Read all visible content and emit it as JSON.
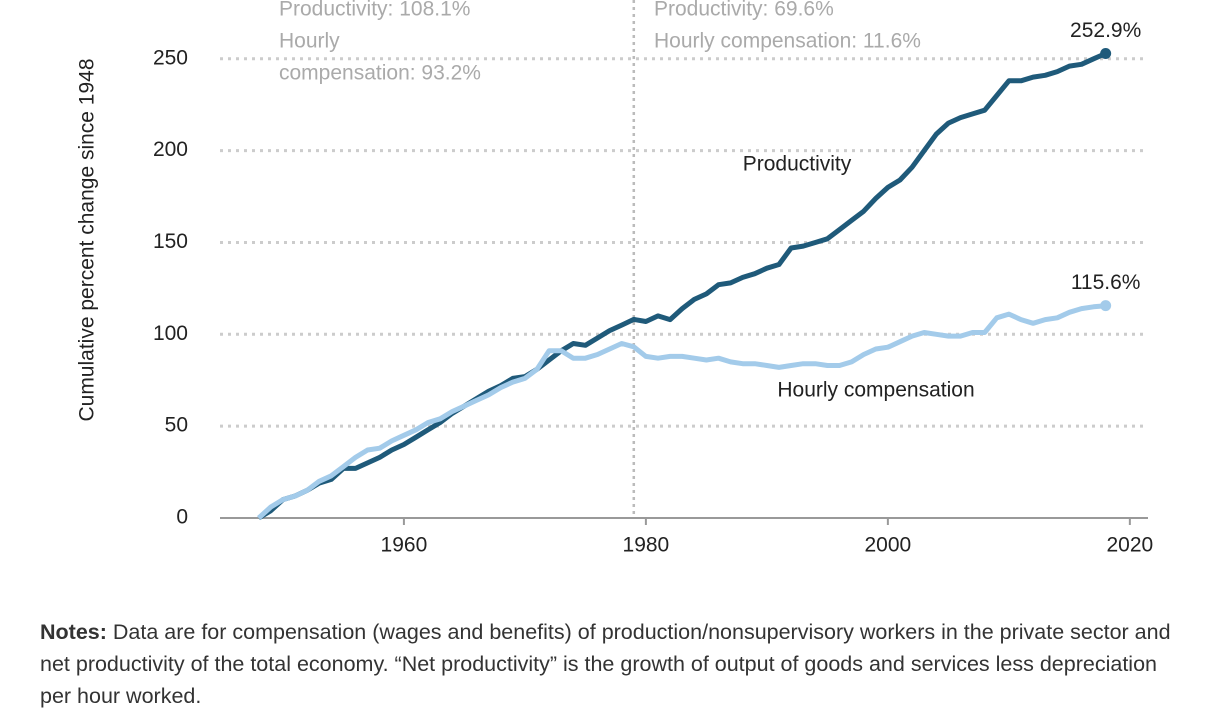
{
  "chart_data": {
    "type": "line",
    "y_label": "Cumulative percent change since 1948",
    "x": [
      1948,
      1949,
      1950,
      1951,
      1952,
      1953,
      1954,
      1955,
      1956,
      1957,
      1958,
      1959,
      1960,
      1961,
      1962,
      1963,
      1964,
      1965,
      1966,
      1967,
      1968,
      1969,
      1970,
      1971,
      1972,
      1973,
      1974,
      1975,
      1976,
      1977,
      1978,
      1979,
      1980,
      1981,
      1982,
      1983,
      1984,
      1985,
      1986,
      1987,
      1988,
      1989,
      1990,
      1991,
      1992,
      1993,
      1994,
      1995,
      1996,
      1997,
      1998,
      1999,
      2000,
      2001,
      2002,
      2003,
      2004,
      2005,
      2006,
      2007,
      2008,
      2009,
      2010,
      2011,
      2012,
      2013,
      2014,
      2015,
      2016,
      2017,
      2018
    ],
    "series": [
      {
        "name": "Productivity",
        "color": "#1f5a7a",
        "end_label": "252.9%",
        "values": [
          0,
          4,
          10,
          12,
          15,
          19,
          21,
          27,
          27,
          30,
          33,
          37,
          40,
          44,
          48,
          52,
          57,
          61,
          65,
          69,
          72,
          76,
          77,
          81,
          86,
          91,
          95,
          94,
          98,
          102,
          105,
          108.1,
          107,
          110,
          108,
          114,
          119,
          122,
          127,
          128,
          131,
          133,
          136,
          138,
          147,
          148,
          150,
          152,
          157,
          162,
          167,
          174,
          180,
          184,
          191,
          200,
          209,
          215,
          218,
          220,
          222,
          230,
          238,
          238,
          240,
          241,
          243,
          246,
          247,
          250,
          252.9
        ]
      },
      {
        "name": "Hourly compensation",
        "color": "#a3cbea",
        "end_label": "115.6%",
        "values": [
          0,
          6,
          10,
          12,
          15,
          20,
          23,
          28,
          33,
          37,
          38,
          42,
          45,
          48,
          52,
          54,
          58,
          61,
          64,
          67,
          71,
          74,
          76,
          81,
          91,
          91,
          87,
          87,
          89,
          92,
          95,
          93.2,
          88,
          87,
          88,
          88,
          87,
          86,
          87,
          85,
          84,
          84,
          83,
          82,
          83,
          84,
          84,
          83,
          83,
          85,
          89,
          92,
          93,
          96,
          99,
          101,
          100,
          99,
          99,
          101,
          101,
          109,
          111,
          108,
          106,
          108,
          109,
          112,
          114,
          115,
          115.6
        ]
      }
    ],
    "xlim": [
      1944.8,
      2021.5
    ],
    "xticks": [
      1960,
      1980,
      2000,
      2020
    ],
    "ylim": [
      0,
      282
    ],
    "yticks": [
      0,
      50,
      100,
      150,
      200,
      250
    ],
    "grid": true,
    "reference_line_x": 1979,
    "annotations": {
      "left": [
        "Productivity: 108.1%",
        "Hourly",
        "compensation: 93.2%"
      ],
      "right": [
        "Productivity: 69.6%",
        "Hourly compensation: 11.6%"
      ]
    },
    "notes_label": "Notes:",
    "notes": "Data are for compensation (wages and benefits) of production/nonsupervisory workers in the private sector and net productivity of the total economy. “Net productivity” is the growth of output of goods and services less depreciation per hour worked."
  }
}
